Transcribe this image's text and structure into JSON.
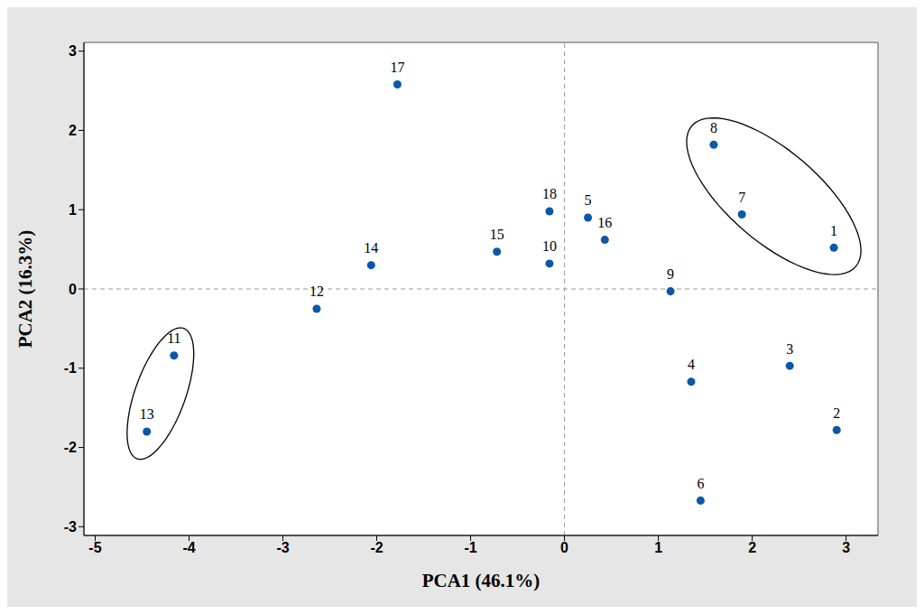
{
  "chart_data": {
    "type": "scatter",
    "x_label": "PCA1 (46.1%)",
    "y_label": "PCA2 (16.3%)",
    "labels": [
      "1",
      "2",
      "3",
      "4",
      "5",
      "6",
      "7",
      "8",
      "9",
      "10",
      "11",
      "12",
      "13",
      "14",
      "15",
      "16",
      "17",
      "18"
    ],
    "x": [
      2.87,
      2.9,
      2.4,
      1.35,
      0.25,
      1.45,
      1.89,
      1.59,
      1.13,
      -0.16,
      -4.16,
      -2.64,
      -4.45,
      -2.06,
      -0.72,
      0.43,
      -1.78,
      -0.16
    ],
    "values": [
      0.52,
      -1.78,
      -0.97,
      -1.17,
      0.9,
      -2.67,
      0.94,
      1.82,
      -0.03,
      0.32,
      -0.84,
      -0.25,
      -1.8,
      0.3,
      0.47,
      0.62,
      2.58,
      0.98
    ],
    "color": "#0a58a6",
    "marker": "circle",
    "xlim": [
      -5.12,
      3.34
    ],
    "ylim": [
      -3.11,
      3.11
    ],
    "xticks": [
      -5,
      -4,
      -3,
      -2,
      -1,
      0,
      1,
      2,
      3
    ],
    "yticks": [
      -3,
      -2,
      -1,
      0,
      1,
      2,
      3
    ],
    "reference_lines": {
      "x": 0,
      "y": 0
    },
    "groups": [
      [
        "1",
        "7",
        "8"
      ],
      [
        "11",
        "13"
      ]
    ],
    "grid": false
  }
}
